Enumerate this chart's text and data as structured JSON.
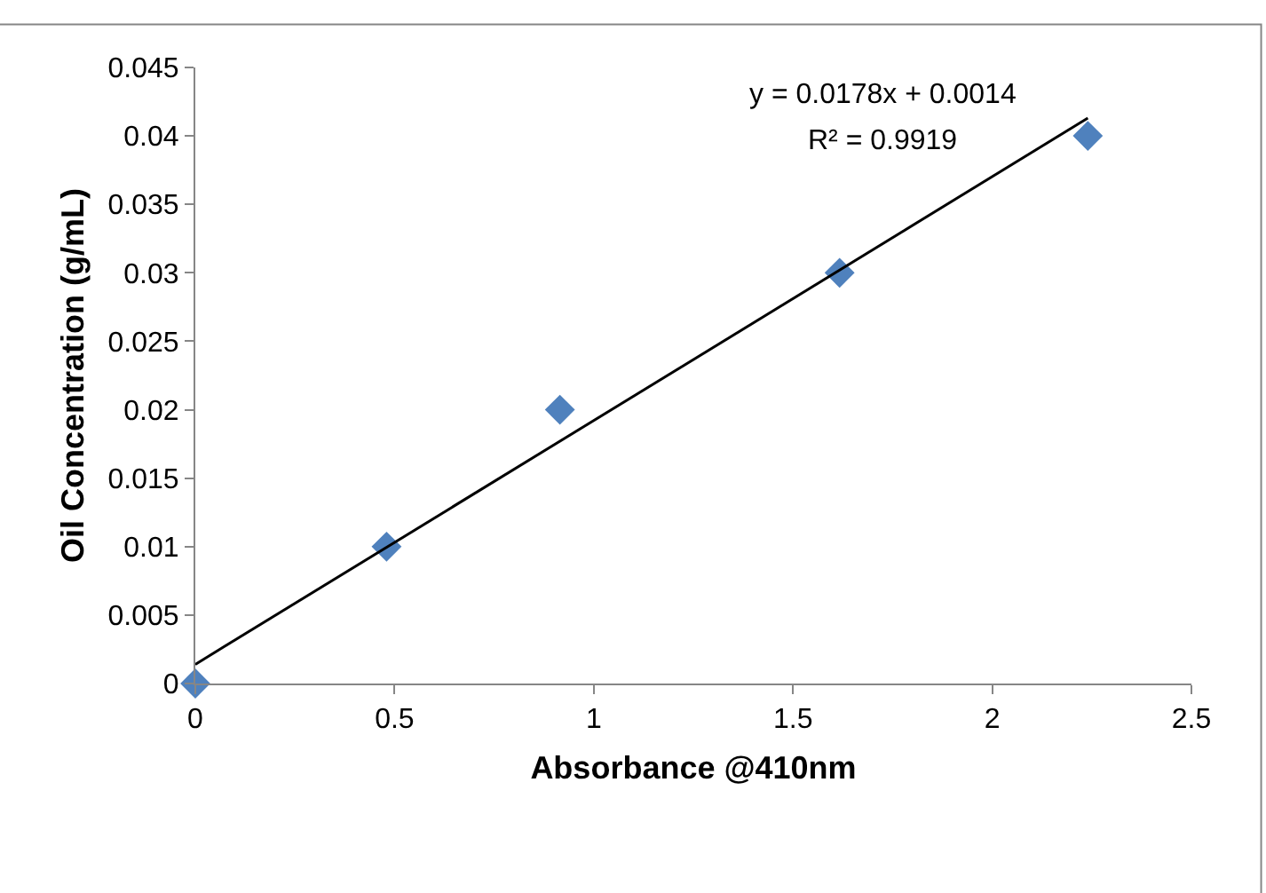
{
  "chart_data": {
    "type": "scatter",
    "xlabel": "Absorbance @410nm",
    "ylabel": "Oil Concentration (g/mL)",
    "x": [
      0,
      0.48,
      0.915,
      1.617,
      2.24
    ],
    "series": [
      {
        "color": "#4f81bd",
        "marker": "diamond",
        "values": [
          0,
          0.01,
          0.02,
          0.03,
          0.04
        ]
      },
      {
        "type": "line",
        "color": "#000000",
        "marker": "none",
        "x": [
          0,
          2.24
        ],
        "values": [
          0.0014,
          0.0413
        ]
      }
    ],
    "annotations": [
      "y = 0.0178x + 0.0014",
      "R² = 0.9919"
    ],
    "xlim": [
      0,
      2.5
    ],
    "xticks": [
      0,
      0.5,
      1,
      1.5,
      2,
      2.5
    ],
    "ylim": [
      0,
      0.045
    ],
    "yticks": [
      0,
      0.005,
      0.01,
      0.015,
      0.02,
      0.025,
      0.03,
      0.035,
      0.04,
      0.045
    ]
  }
}
